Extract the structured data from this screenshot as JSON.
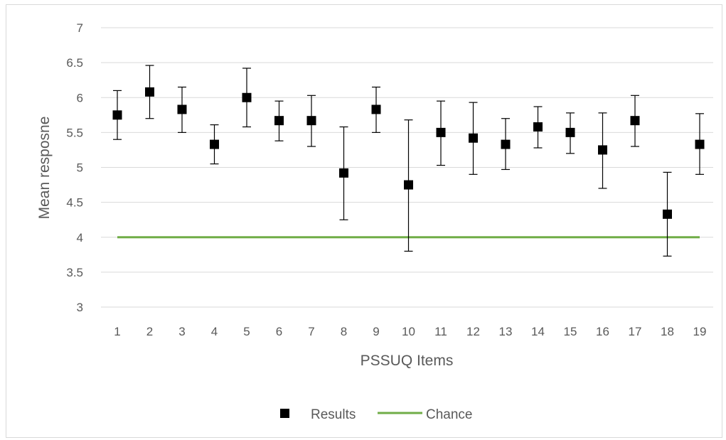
{
  "chart_data": {
    "type": "scatter",
    "xlabel": "PSSUQ Items",
    "ylabel": "Mean resposne",
    "ylim": [
      3,
      7
    ],
    "yticks": [
      "3",
      "3.5",
      "4",
      "4.5",
      "5",
      "5.5",
      "6",
      "6.5",
      "7"
    ],
    "categories": [
      "1",
      "2",
      "3",
      "4",
      "5",
      "6",
      "7",
      "8",
      "9",
      "10",
      "11",
      "12",
      "13",
      "14",
      "15",
      "16",
      "17",
      "18",
      "19"
    ],
    "grid": true,
    "legend_position": "bottom",
    "series": [
      {
        "name": "Results",
        "color": "#000000",
        "marker": "square",
        "values": [
          5.75,
          6.08,
          5.83,
          5.33,
          6.0,
          5.67,
          5.67,
          4.92,
          5.83,
          4.75,
          5.5,
          5.42,
          5.33,
          5.58,
          5.5,
          5.25,
          5.67,
          4.33,
          5.33
        ],
        "error_low": [
          5.4,
          5.7,
          5.5,
          5.05,
          5.58,
          5.38,
          5.3,
          4.25,
          5.5,
          3.8,
          5.03,
          4.9,
          4.97,
          5.28,
          5.2,
          4.7,
          5.3,
          3.73,
          4.9
        ],
        "error_high": [
          6.1,
          6.46,
          6.15,
          5.61,
          6.42,
          5.95,
          6.03,
          5.58,
          6.15,
          5.68,
          5.95,
          5.93,
          5.7,
          5.87,
          5.78,
          5.78,
          6.03,
          4.93,
          5.77
        ]
      },
      {
        "name": "Chance",
        "color": "#70ad47",
        "type": "line",
        "value": 4
      }
    ]
  }
}
